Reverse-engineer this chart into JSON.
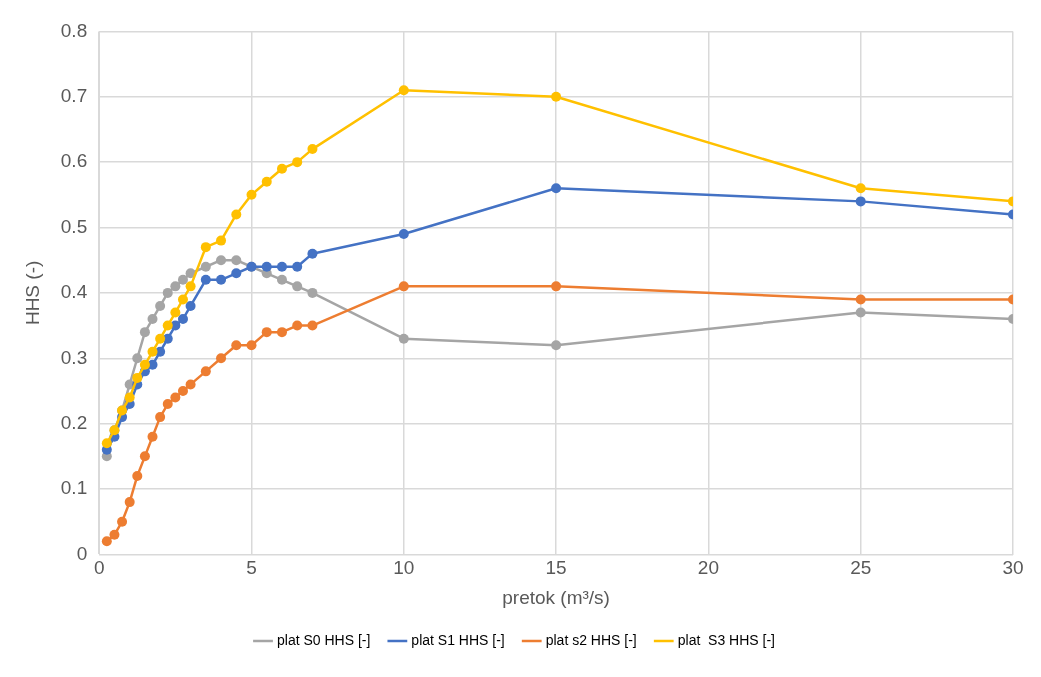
{
  "chart_data": {
    "type": "line",
    "xlabel": "pretok (m³/s)",
    "ylabel": "HHS (-)",
    "x": [
      0.25,
      0.5,
      0.75,
      1,
      1.25,
      1.5,
      1.75,
      2,
      2.25,
      2.5,
      2.75,
      3,
      3.5,
      4,
      4.5,
      5,
      5.5,
      6,
      6.5,
      7,
      10,
      15,
      25,
      30
    ],
    "xlim": [
      0,
      30
    ],
    "xticks": [
      0,
      5,
      10,
      15,
      20,
      25,
      30
    ],
    "ylim": [
      0,
      0.8
    ],
    "yticks": [
      0,
      0.1,
      0.2,
      0.3,
      0.4,
      0.5,
      0.6,
      0.7,
      0.8
    ],
    "grid": true,
    "legend": "bottom",
    "marker": "circle",
    "line_style": "solid",
    "series": [
      {
        "name": "plat S0 HHS [-]",
        "color": "#a5a5a5",
        "values": [
          0.15,
          0.19,
          0.22,
          0.26,
          0.3,
          0.34,
          0.36,
          0.38,
          0.4,
          0.41,
          0.42,
          0.43,
          0.44,
          0.45,
          0.45,
          0.44,
          0.43,
          0.42,
          0.41,
          0.4,
          0.33,
          0.32,
          0.37,
          0.36
        ]
      },
      {
        "name": "plat S1 HHS [-]",
        "color": "#4472c4",
        "values": [
          0.16,
          0.18,
          0.21,
          0.23,
          0.26,
          0.28,
          0.29,
          0.31,
          0.33,
          0.35,
          0.36,
          0.38,
          0.42,
          0.42,
          0.43,
          0.44,
          0.44,
          0.44,
          0.44,
          0.46,
          0.49,
          0.56,
          0.54,
          0.52
        ]
      },
      {
        "name": "plat s2 HHS [-]",
        "color": "#ed7d31",
        "values": [
          0.02,
          0.03,
          0.05,
          0.08,
          0.12,
          0.15,
          0.18,
          0.21,
          0.23,
          0.24,
          0.25,
          0.26,
          0.28,
          0.3,
          0.32,
          0.32,
          0.34,
          0.34,
          0.35,
          0.35,
          0.41,
          0.41,
          0.39,
          0.39
        ]
      },
      {
        "name": "plat  S3 HHS [-]",
        "color": "#ffc000",
        "values": [
          0.17,
          0.19,
          0.22,
          0.24,
          0.27,
          0.29,
          0.31,
          0.33,
          0.35,
          0.37,
          0.39,
          0.41,
          0.47,
          0.48,
          0.52,
          0.55,
          0.57,
          0.59,
          0.6,
          0.62,
          0.71,
          0.7,
          0.56,
          0.54
        ]
      }
    ]
  }
}
